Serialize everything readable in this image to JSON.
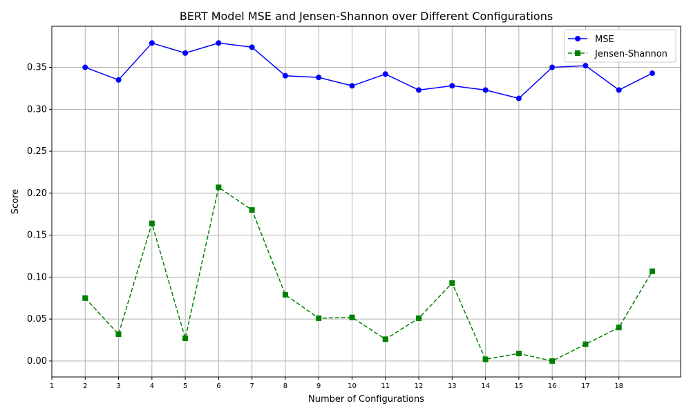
{
  "chart_data": {
    "type": "line",
    "title": "BERT Model MSE and Jensen-Shannon over Different Configurations",
    "xlabel": "Number of Configurations",
    "ylabel": "Score",
    "x": [
      2,
      3,
      4,
      5,
      6,
      7,
      8,
      9,
      10,
      11,
      12,
      13,
      14,
      15,
      16,
      17,
      18,
      19
    ],
    "xticks": [
      1,
      2,
      3,
      4,
      5,
      6,
      7,
      8,
      9,
      10,
      11,
      12,
      13,
      14,
      15,
      16,
      17,
      18
    ],
    "xlim": [
      1,
      19.85
    ],
    "yticks": [
      "0.00",
      "0.05",
      "0.10",
      "0.15",
      "0.20",
      "0.25",
      "0.30",
      "0.35"
    ],
    "ylim": [
      -0.019,
      0.399
    ],
    "grid": true,
    "legend_position": "upper right",
    "series": [
      {
        "name": "MSE",
        "color": "#0000ff",
        "marker": "circle",
        "line_style": "solid",
        "values": [
          0.35,
          0.335,
          0.379,
          0.367,
          0.379,
          0.374,
          0.34,
          0.338,
          0.328,
          0.342,
          0.323,
          0.328,
          0.323,
          0.313,
          0.35,
          0.352,
          0.323,
          0.343
        ]
      },
      {
        "name": "Jensen-Shannon",
        "color": "#008000",
        "marker": "square",
        "line_style": "dashed",
        "values": [
          0.075,
          0.032,
          0.164,
          0.027,
          0.207,
          0.18,
          0.079,
          0.051,
          0.052,
          0.026,
          0.051,
          0.093,
          0.002,
          0.009,
          0.0,
          0.02,
          0.04,
          0.107
        ]
      }
    ]
  }
}
